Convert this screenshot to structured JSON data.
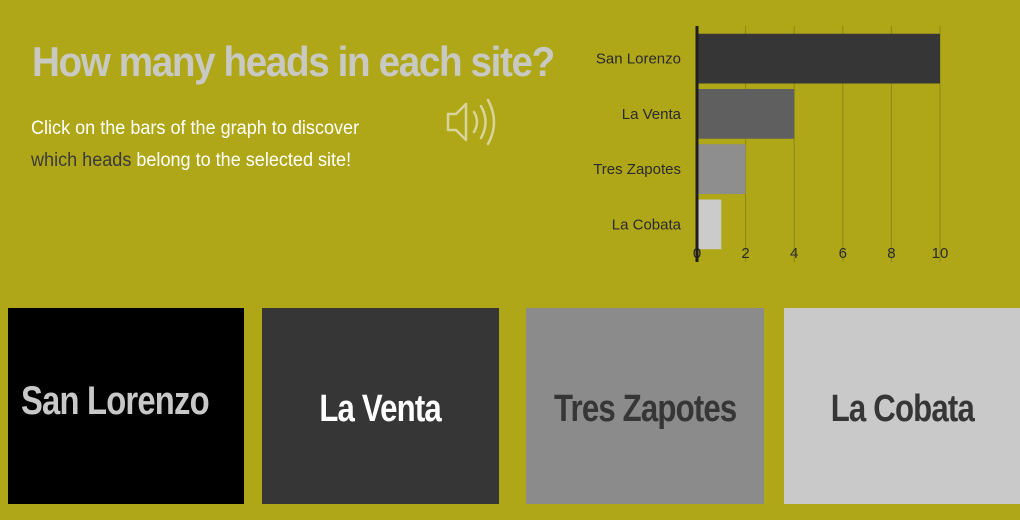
{
  "header": {
    "title": "How many heads in each site?",
    "desc_part1": "Click on the bars of the graph to discover ",
    "desc_highlight": "which heads",
    "desc_part2": " belong to the selected site!"
  },
  "icons": {
    "sound": "speaker-volume-icon"
  },
  "chart_data": {
    "type": "bar",
    "orientation": "horizontal",
    "categories": [
      "San Lorenzo",
      "La Venta",
      "Tres Zapotes",
      "La Cobata"
    ],
    "values": [
      10,
      4,
      2,
      1
    ],
    "colors": [
      "#363636",
      "#5f5f5f",
      "#8e8e8e",
      "#cbcbcb"
    ],
    "xlim": [
      0,
      10
    ],
    "xticks": [
      0,
      2,
      4,
      6,
      8,
      10
    ],
    "grid": true,
    "title": "",
    "xlabel": "",
    "ylabel": ""
  },
  "cards": [
    {
      "label": "San Lorenzo"
    },
    {
      "label": "La Venta"
    },
    {
      "label": "Tres Zapotes"
    },
    {
      "label": "La Cobata"
    }
  ]
}
